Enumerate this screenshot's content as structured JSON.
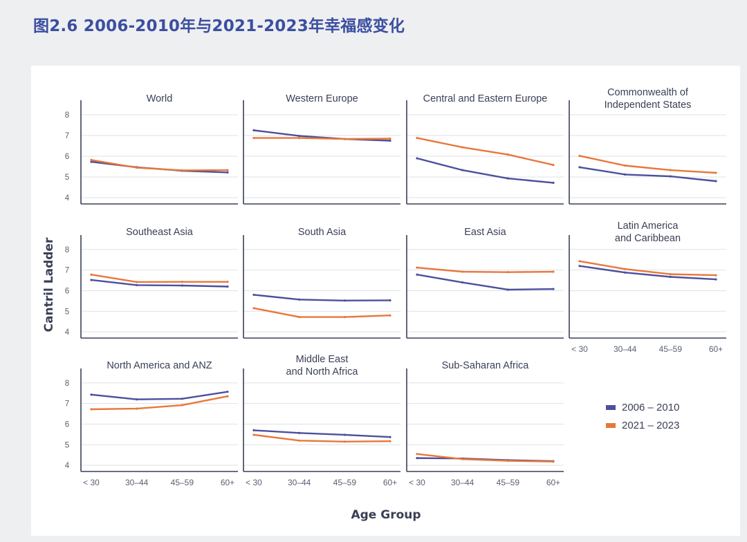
{
  "title": "图2.6 2006-2010年与2021-2023年幸福感变化",
  "chart_data": {
    "type": "line",
    "ylabel": "Cantril Ladder",
    "xlabel": "Age Group",
    "categories": [
      "< 30",
      "30–44",
      "45–59",
      "60+"
    ],
    "yticks": [
      8,
      7,
      6,
      5,
      4
    ],
    "ylim": [
      3.7,
      8.7
    ],
    "series_names": [
      "2006 – 2010",
      "2021 – 2023"
    ],
    "colors": {
      "2006 – 2010": "#4b4f9c",
      "2021 – 2023": "#e8773a"
    },
    "panels": [
      {
        "title": [
          "World"
        ],
        "series": [
          {
            "name": "2006 – 2010",
            "values": [
              5.73,
              5.47,
              5.3,
              5.22
            ]
          },
          {
            "name": "2021 – 2023",
            "values": [
              5.82,
              5.45,
              5.32,
              5.33
            ]
          }
        ]
      },
      {
        "title": [
          "Western Europe"
        ],
        "series": [
          {
            "name": "2006 – 2010",
            "values": [
              7.25,
              6.98,
              6.83,
              6.75
            ]
          },
          {
            "name": "2021 – 2023",
            "values": [
              6.88,
              6.88,
              6.83,
              6.85
            ]
          }
        ]
      },
      {
        "title": [
          "Central and Eastern Europe"
        ],
        "series": [
          {
            "name": "2006 – 2010",
            "values": [
              5.9,
              5.33,
              4.93,
              4.72
            ]
          },
          {
            "name": "2021 – 2023",
            "values": [
              6.88,
              6.43,
              6.08,
              5.58
            ]
          }
        ]
      },
      {
        "title": [
          "Commonwealth of",
          "Independent States"
        ],
        "series": [
          {
            "name": "2006 – 2010",
            "values": [
              5.47,
              5.12,
              5.03,
              4.8
            ]
          },
          {
            "name": "2021 – 2023",
            "values": [
              6.02,
              5.55,
              5.33,
              5.2
            ]
          }
        ]
      },
      {
        "title": [
          "Southeast Asia"
        ],
        "series": [
          {
            "name": "2006 – 2010",
            "values": [
              6.52,
              6.27,
              6.25,
              6.2
            ]
          },
          {
            "name": "2021 – 2023",
            "values": [
              6.78,
              6.42,
              6.43,
              6.43
            ]
          }
        ]
      },
      {
        "title": [
          "South Asia"
        ],
        "series": [
          {
            "name": "2006 – 2010",
            "values": [
              5.8,
              5.57,
              5.52,
              5.53
            ]
          },
          {
            "name": "2021 – 2023",
            "values": [
              5.15,
              4.72,
              4.72,
              4.8
            ]
          }
        ]
      },
      {
        "title": [
          "East Asia"
        ],
        "series": [
          {
            "name": "2006 – 2010",
            "values": [
              6.78,
              6.4,
              6.05,
              6.08
            ]
          },
          {
            "name": "2021 – 2023",
            "values": [
              7.12,
              6.92,
              6.9,
              6.92
            ]
          }
        ]
      },
      {
        "title": [
          "Latin America",
          "and Caribbean"
        ],
        "series": [
          {
            "name": "2006 – 2010",
            "values": [
              7.2,
              6.88,
              6.67,
              6.55
            ]
          },
          {
            "name": "2021 – 2023",
            "values": [
              7.43,
              7.05,
              6.8,
              6.75
            ]
          }
        ]
      },
      {
        "title": [
          "North America and ANZ"
        ],
        "series": [
          {
            "name": "2006 – 2010",
            "values": [
              7.43,
              7.2,
              7.23,
              7.57
            ]
          },
          {
            "name": "2021 – 2023",
            "values": [
              6.72,
              6.75,
              6.92,
              7.35
            ]
          }
        ]
      },
      {
        "title": [
          "Middle East",
          "and North Africa"
        ],
        "series": [
          {
            "name": "2006 – 2010",
            "values": [
              5.7,
              5.57,
              5.48,
              5.37
            ]
          },
          {
            "name": "2021 – 2023",
            "values": [
              5.48,
              5.2,
              5.15,
              5.17
            ]
          }
        ]
      },
      {
        "title": [
          "Sub-Saharan Africa"
        ],
        "series": [
          {
            "name": "2006 – 2010",
            "values": [
              4.35,
              4.33,
              4.25,
              4.2
            ]
          },
          {
            "name": "2021 – 2023",
            "values": [
              4.55,
              4.3,
              4.22,
              4.18
            ]
          }
        ]
      }
    ]
  }
}
